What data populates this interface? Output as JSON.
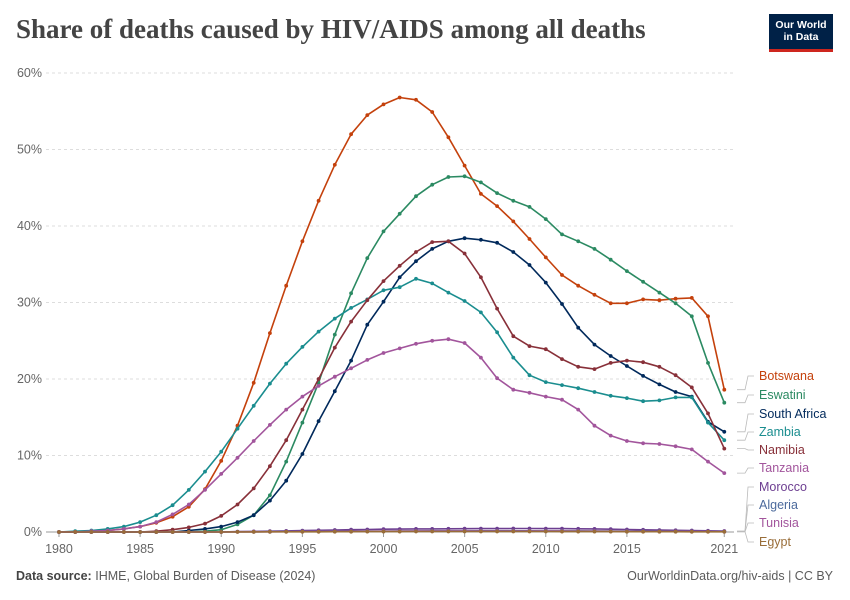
{
  "header": {
    "title": "Share of deaths caused by HIV/AIDS among all deaths",
    "logo_line1": "Our World",
    "logo_line2": "in Data"
  },
  "footer": {
    "source_label": "Data source:",
    "source_text": "IHME, Global Burden of Disease (2024)",
    "url": "OurWorldinData.org/hiv-aids | CC BY"
  },
  "chart_data": {
    "type": "line",
    "title": "Share of deaths caused by HIV/AIDS among all deaths",
    "xlabel": "",
    "ylabel": "",
    "xlim": [
      1980,
      2021
    ],
    "ylim": [
      0,
      60
    ],
    "y_ticks": [
      0,
      10,
      20,
      30,
      40,
      50,
      60
    ],
    "y_tick_labels": [
      "0%",
      "10%",
      "20%",
      "30%",
      "40%",
      "50%",
      "60%"
    ],
    "x_ticks": [
      1980,
      1985,
      1990,
      1995,
      2000,
      2005,
      2010,
      2015,
      2021
    ],
    "x_tick_labels": [
      "1980",
      "1985",
      "1990",
      "1995",
      "2000",
      "2005",
      "2010",
      "2015",
      "2021"
    ],
    "grid": "horizontal dashed",
    "legend": "right-side labels",
    "x": [
      1980,
      1981,
      1982,
      1983,
      1984,
      1985,
      1986,
      1987,
      1988,
      1989,
      1990,
      1991,
      1992,
      1993,
      1994,
      1995,
      1996,
      1997,
      1998,
      1999,
      2000,
      2001,
      2002,
      2003,
      2004,
      2005,
      2006,
      2007,
      2008,
      2009,
      2010,
      2011,
      2012,
      2013,
      2014,
      2015,
      2016,
      2017,
      2018,
      2019,
      2020,
      2021
    ],
    "series": [
      {
        "name": "Botswana",
        "color": "#c4410c",
        "values": [
          0,
          0,
          0.1,
          0.2,
          0.4,
          0.7,
          1.2,
          2.0,
          3.3,
          5.6,
          9.3,
          13.9,
          19.5,
          26,
          32.2,
          38,
          43.3,
          48,
          52,
          54.5,
          55.9,
          56.8,
          56.5,
          54.9,
          51.6,
          47.9,
          44.2,
          42.6,
          40.6,
          38.3,
          35.9,
          33.6,
          32.2,
          31,
          29.9,
          29.9,
          30.4,
          30.3,
          30.5,
          30.6,
          28.2,
          18.6
        ]
      },
      {
        "name": "Eswatini",
        "color": "#2b8a62",
        "values": [
          0,
          0,
          0,
          0,
          0,
          0,
          0,
          0,
          0,
          0.1,
          0.3,
          1.0,
          2.2,
          4.8,
          9.2,
          14.3,
          19.5,
          25.8,
          31.2,
          35.8,
          39.3,
          41.6,
          43.9,
          45.4,
          46.4,
          46.5,
          45.7,
          44.3,
          43.3,
          42.5,
          40.9,
          38.9,
          38,
          37,
          35.6,
          34.1,
          32.7,
          31.3,
          29.9,
          28.2,
          22.1,
          16.9
        ]
      },
      {
        "name": "South Africa",
        "color": "#00295b",
        "values": [
          0,
          0,
          0,
          0,
          0,
          0,
          0,
          0,
          0.2,
          0.4,
          0.7,
          1.3,
          2.2,
          4.1,
          6.7,
          10.2,
          14.5,
          18.4,
          22.4,
          27.1,
          30.1,
          33.3,
          35.4,
          37,
          38,
          38.4,
          38.2,
          37.8,
          36.6,
          34.9,
          32.6,
          29.8,
          26.7,
          24.5,
          23,
          21.7,
          20.4,
          19.3,
          18.3,
          17.7,
          14.4,
          13.1
        ]
      },
      {
        "name": "Zambia",
        "color": "#1a8d8f",
        "values": [
          0,
          0.1,
          0.2,
          0.4,
          0.7,
          1.3,
          2.2,
          3.5,
          5.5,
          7.9,
          10.5,
          13.5,
          16.5,
          19.4,
          22,
          24.2,
          26.2,
          27.9,
          29.3,
          30.4,
          31.6,
          32,
          33.1,
          32.5,
          31.3,
          30.2,
          28.7,
          26.1,
          22.8,
          20.5,
          19.6,
          19.2,
          18.8,
          18.3,
          17.8,
          17.5,
          17.1,
          17.2,
          17.6,
          17.6,
          14.3,
          12
        ]
      },
      {
        "name": "Namibia",
        "color": "#883039",
        "values": [
          0,
          0,
          0,
          0,
          0,
          0,
          0.1,
          0.3,
          0.6,
          1.1,
          2.1,
          3.6,
          5.7,
          8.6,
          12,
          16,
          20,
          24.1,
          27.5,
          30.3,
          32.8,
          34.8,
          36.6,
          37.9,
          38,
          36.4,
          33.3,
          29.2,
          25.6,
          24.3,
          23.9,
          22.6,
          21.6,
          21.3,
          22.1,
          22.4,
          22.2,
          21.6,
          20.5,
          18.9,
          15.5,
          10.9
        ]
      },
      {
        "name": "Tanzania",
        "color": "#a2559c",
        "values": [
          0,
          0,
          0.1,
          0.2,
          0.4,
          0.7,
          1.3,
          2.3,
          3.6,
          5.5,
          7.6,
          9.7,
          11.9,
          14,
          16,
          17.7,
          19.1,
          20.3,
          21.4,
          22.5,
          23.4,
          24,
          24.6,
          25,
          25.2,
          24.7,
          22.8,
          20.1,
          18.6,
          18.2,
          17.7,
          17.3,
          16,
          13.9,
          12.6,
          11.9,
          11.6,
          11.5,
          11.2,
          10.8,
          9.2,
          7.7
        ]
      },
      {
        "name": "Morocco",
        "color": "#6d3e91",
        "values": [
          0,
          0,
          0,
          0,
          0,
          0,
          0,
          0,
          0,
          0,
          0,
          0.05,
          0.08,
          0.1,
          0.14,
          0.18,
          0.22,
          0.26,
          0.3,
          0.33,
          0.36,
          0.38,
          0.4,
          0.41,
          0.42,
          0.43,
          0.44,
          0.45,
          0.46,
          0.46,
          0.45,
          0.44,
          0.42,
          0.4,
          0.37,
          0.33,
          0.29,
          0.25,
          0.22,
          0.19,
          0.16,
          0.13
        ]
      },
      {
        "name": "Algeria",
        "color": "#4c6a9c",
        "values": [
          0,
          0,
          0,
          0,
          0,
          0,
          0,
          0,
          0,
          0,
          0,
          0.02,
          0.03,
          0.04,
          0.05,
          0.06,
          0.07,
          0.08,
          0.09,
          0.1,
          0.11,
          0.12,
          0.13,
          0.14,
          0.15,
          0.15,
          0.16,
          0.16,
          0.16,
          0.16,
          0.15,
          0.15,
          0.14,
          0.13,
          0.12,
          0.11,
          0.1,
          0.09,
          0.08,
          0.07,
          0.06,
          0.05
        ]
      },
      {
        "name": "Tunisia",
        "color": "#a2559c",
        "values": [
          0,
          0,
          0,
          0,
          0,
          0,
          0,
          0,
          0,
          0,
          0,
          0.01,
          0.02,
          0.03,
          0.04,
          0.05,
          0.06,
          0.07,
          0.08,
          0.09,
          0.1,
          0.11,
          0.12,
          0.12,
          0.13,
          0.13,
          0.13,
          0.13,
          0.13,
          0.13,
          0.12,
          0.12,
          0.11,
          0.1,
          0.09,
          0.08,
          0.07,
          0.07,
          0.06,
          0.05,
          0.05,
          0.04
        ]
      },
      {
        "name": "Egypt",
        "color": "#996d39",
        "values": [
          0,
          0,
          0,
          0,
          0,
          0,
          0,
          0,
          0,
          0,
          0,
          0.01,
          0.01,
          0.02,
          0.02,
          0.03,
          0.03,
          0.04,
          0.04,
          0.05,
          0.05,
          0.05,
          0.06,
          0.06,
          0.06,
          0.06,
          0.06,
          0.06,
          0.06,
          0.06,
          0.06,
          0.05,
          0.05,
          0.05,
          0.05,
          0.04,
          0.04,
          0.04,
          0.04,
          0.03,
          0.03,
          0.03
        ]
      }
    ]
  }
}
